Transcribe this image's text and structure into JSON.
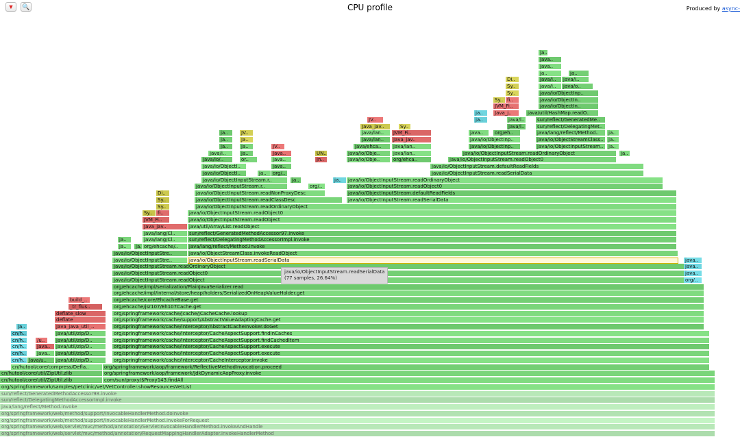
{
  "header": {
    "title": "CPU profile",
    "produced_prefix": "Produced by ",
    "produced_link": "async-",
    "reverse_glyph": "▼",
    "search_glyph": "🔍"
  },
  "tooltip": {
    "name": "java/io/ObjectInputStream.readSerialData",
    "detail": "(77 samples, 26.64%)"
  },
  "colors": {
    "green": "#7ad57a",
    "red": "#e06c6c",
    "aqua": "#6fd6e0",
    "yellow": "#d3cf55",
    "light_green": "#b8e8b8",
    "highlight": "#fff8d8"
  },
  "frames": [
    {
      "name": "org/springframework/web/servlet/mvc/method/annotation/RequestMappingHandlerAdapter.invokeHandlerMethod",
      "c": "lg",
      "r": 0,
      "x0": 0,
      "x1": 1044
    },
    {
      "name": "org/springframework/web/servlet/mvc/method/annotation/ServletInvocableHandlerMethod.invokeAndHandle",
      "c": "lg",
      "r": 1,
      "x0": 0,
      "x1": 1044
    },
    {
      "name": "org/springframework/web/method/support/InvocableHandlerMethod.invokeForRequest",
      "c": "lg",
      "r": 2,
      "x0": 0,
      "x1": 1044
    },
    {
      "name": "org/springframework/web/method/support/InvocableHandlerMethod.doInvoke",
      "c": "lg",
      "r": 3,
      "x0": 0,
      "x1": 1044
    },
    {
      "name": "java/lang/reflect/Method.invoke",
      "c": "lg",
      "r": 4,
      "x0": 0,
      "x1": 1044
    },
    {
      "name": "sun/reflect/DelegatingMethodAccessorImpl.invoke",
      "c": "lg",
      "r": 5,
      "x0": 0,
      "x1": 1044
    },
    {
      "name": "sun/reflect/GeneratedMethodAccessor98.invoke",
      "c": "lg",
      "r": 6,
      "x0": 0,
      "x1": 1044
    },
    {
      "name": "org/springframework/samples/petclinic/vet/VetController.showResourcesVetList",
      "c": "g",
      "r": 7,
      "x0": 0,
      "x1": 1044
    },
    {
      "name": "cn/hutool/core/util/ZipUtil.zlib",
      "c": "g",
      "r": 8,
      "x0": 0,
      "x1": 150
    },
    {
      "name": "com/sun/proxy/$Proxy143.findAll",
      "c": "g",
      "r": 8,
      "x0": 150,
      "x1": 1044
    },
    {
      "name": "cn/hutool/core/util/ZipUtil.zlib",
      "c": "g",
      "r": 9,
      "x0": 0,
      "x1": 150
    },
    {
      "name": "org/springframework/aop/framework/JdkDynamicAopProxy.invoke",
      "c": "g",
      "r": 9,
      "x0": 150,
      "x1": 1044
    },
    {
      "name": "cn/hutool/core/compress/Defla..",
      "c": "g",
      "r": 10,
      "x0": 16,
      "x1": 150
    },
    {
      "name": "org/springframework/aop/framework/ReflectiveMethodInvocation.proceed",
      "c": "g",
      "r": 10,
      "x0": 150,
      "x1": 1036
    },
    {
      "name": "cn/h..",
      "c": "a",
      "r": 11,
      "x0": 16,
      "x1": 40
    },
    {
      "name": "Java/u..",
      "c": "g",
      "r": 11,
      "x0": 40,
      "x1": 80
    },
    {
      "name": "java/util/zip/D..",
      "c": "g",
      "r": 11,
      "x0": 80,
      "x1": 155
    },
    {
      "name": "org/springframework/cache/interceptor/CacheInterceptor.invoke",
      "c": "g",
      "r": 11,
      "x0": 164,
      "x1": 1036
    },
    {
      "name": "cn/h..",
      "c": "a",
      "r": 12,
      "x0": 16,
      "x1": 40
    },
    {
      "name": "Java..",
      "c": "g",
      "r": 12,
      "x0": 52,
      "x1": 80
    },
    {
      "name": "java/util/zip/D..",
      "c": "g",
      "r": 12,
      "x0": 80,
      "x1": 155
    },
    {
      "name": "org/springframework/cache/interceptor/CacheAspectSupport.execute",
      "c": "g",
      "r": 12,
      "x0": 164,
      "x1": 1036
    },
    {
      "name": "cn/h..",
      "c": "a",
      "r": 13,
      "x0": 16,
      "x1": 40
    },
    {
      "name": "Java..",
      "c": "r",
      "r": 13,
      "x0": 52,
      "x1": 80
    },
    {
      "name": "java/util/zip/D..",
      "c": "g",
      "r": 13,
      "x0": 80,
      "x1": 155
    },
    {
      "name": "org/springframework/cache/interceptor/CacheAspectSupport.execute",
      "c": "g",
      "r": 13,
      "x0": 164,
      "x1": 1036
    },
    {
      "name": "cn/h..",
      "c": "a",
      "r": 14,
      "x0": 16,
      "x1": 40
    },
    {
      "name": "/u..",
      "c": "r",
      "r": 14,
      "x0": 52,
      "x1": 70
    },
    {
      "name": "java/util/zip/D..",
      "c": "g",
      "r": 14,
      "x0": 80,
      "x1": 155
    },
    {
      "name": "org/springframework/cache/interceptor/CacheAspectSupport.findCachedItem",
      "c": "g",
      "r": 14,
      "x0": 164,
      "x1": 1036
    },
    {
      "name": "cn/h..",
      "c": "a",
      "r": 15,
      "x0": 16,
      "x1": 40
    },
    {
      "name": "java/util/zip/D..",
      "c": "g",
      "r": 15,
      "x0": 80,
      "x1": 155
    },
    {
      "name": "org/springframework/cache/interceptor/CacheAspectSupport.findInCaches",
      "c": "g",
      "r": 15,
      "x0": 164,
      "x1": 1036
    },
    {
      "name": "ja..",
      "c": "a",
      "r": 16,
      "x0": 24,
      "x1": 40
    },
    {
      "name": "Java_java_util_..",
      "c": "r",
      "r": 16,
      "x0": 80,
      "x1": 155
    },
    {
      "name": "org/springframework/cache/interceptor/AbstractCacheInvoker.doGet",
      "c": "g",
      "r": 16,
      "x0": 164,
      "x1": 1028
    },
    {
      "name": "deflate",
      "c": "r",
      "r": 17,
      "x0": 80,
      "x1": 155
    },
    {
      "name": "org/springframework/cache/support/AbstractValueAdaptingCache.get",
      "c": "g",
      "r": 17,
      "x0": 164,
      "x1": 1028
    },
    {
      "name": "deflate_slow",
      "c": "r",
      "r": 18,
      "x0": 80,
      "x1": 155
    },
    {
      "name": "org/springframework/cache/jcache/JCacheCache.lookup",
      "c": "g",
      "r": 18,
      "x0": 164,
      "x1": 1028
    },
    {
      "name": "_tr_flus..",
      "c": "r",
      "r": 19,
      "x0": 100,
      "x1": 150
    },
    {
      "name": "org/ehcache/jsr107/Eh107Cache.get",
      "c": "g",
      "r": 19,
      "x0": 164,
      "x1": 1028
    },
    {
      "name": "build_..",
      "c": "r",
      "r": 20,
      "x0": 100,
      "x1": 132
    },
    {
      "name": "org/ehcache/core/EhcacheBase.get",
      "c": "g",
      "r": 20,
      "x0": 164,
      "x1": 1028
    },
    {
      "name": "org/ehcache/impl/internal/store/heap/holders/SerializedOnHeapValueHolder.get",
      "c": "g",
      "r": 21,
      "x0": 164,
      "x1": 1028
    },
    {
      "name": "org/ehcache/impl/serialization/PlainJavaSerializer.read",
      "c": "g",
      "r": 22,
      "x0": 164,
      "x1": 1028
    },
    {
      "name": "java/io/ObjectInputStream.readObject",
      "c": "g",
      "r": 23,
      "x0": 164,
      "x1": 1000
    },
    {
      "name": "org/..",
      "c": "a",
      "r": 23,
      "x0": 998,
      "x1": 1025
    },
    {
      "name": "java/io/ObjectInputStream.readObject0",
      "c": "g",
      "r": 24,
      "x0": 164,
      "x1": 1000
    },
    {
      "name": "java..",
      "c": "a",
      "r": 24,
      "x0": 998,
      "x1": 1025
    },
    {
      "name": "java/io/ObjectInputStream.readOrdinaryObject",
      "c": "g",
      "r": 25,
      "x0": 164,
      "x1": 1000
    },
    {
      "name": "java..",
      "c": "a",
      "r": 25,
      "x0": 998,
      "x1": 1025
    },
    {
      "name": "java/io/ObjectInputStre..",
      "c": "g",
      "r": 26,
      "x0": 164,
      "x1": 274
    },
    {
      "name": "java/io/ObjectInputStream.readSerialData",
      "c": "hl",
      "r": 26,
      "x0": 274,
      "x1": 990
    },
    {
      "name": "java..",
      "c": "a",
      "r": 26,
      "x0": 998,
      "x1": 1025
    },
    {
      "name": "java/io/ObjectInputStre..",
      "c": "g",
      "r": 27,
      "x0": 164,
      "x1": 274
    },
    {
      "name": "java/io/ObjectStreamClass.invokeReadObject",
      "c": "g",
      "r": 27,
      "x0": 274,
      "x1": 990
    },
    {
      "name": "ja..",
      "c": "g",
      "r": 28,
      "x0": 172,
      "x1": 192
    },
    {
      "name": "ja..",
      "c": "g",
      "r": 28,
      "x0": 196,
      "x1": 208
    },
    {
      "name": "org/ehcache/..",
      "c": "g",
      "r": 28,
      "x0": 208,
      "x1": 274
    },
    {
      "name": "java/lang/reflect/Method.invoke",
      "c": "g",
      "r": 28,
      "x0": 274,
      "x1": 988
    },
    {
      "name": "ja..",
      "c": "g",
      "r": 29,
      "x0": 172,
      "x1": 192
    },
    {
      "name": "java/lang/Cl..",
      "c": "g",
      "r": 29,
      "x0": 208,
      "x1": 274
    },
    {
      "name": "sun/reflect/DelegatingMethodAccessorImpl.invoke",
      "c": "g",
      "r": 29,
      "x0": 274,
      "x1": 988
    },
    {
      "name": "java/lang/Cl..",
      "c": "g",
      "r": 30,
      "x0": 208,
      "x1": 274
    },
    {
      "name": "sun/reflect/GeneratedMethodAccessor97.invoke",
      "c": "g",
      "r": 30,
      "x0": 274,
      "x1": 988
    },
    {
      "name": "Java_jav..",
      "c": "r",
      "r": 31,
      "x0": 208,
      "x1": 274
    },
    {
      "name": "java/util/ArrayList.readObject",
      "c": "g",
      "r": 31,
      "x0": 274,
      "x1": 988
    },
    {
      "name": "JVM_Fi..",
      "c": "r",
      "r": 32,
      "x0": 208,
      "x1": 248
    },
    {
      "name": "java/io/ObjectInputStream.readObject",
      "c": "g",
      "r": 32,
      "x0": 274,
      "x1": 988
    },
    {
      "name": "Sy..",
      "c": "y",
      "r": 33,
      "x0": 208,
      "x1": 228
    },
    {
      "name": "fi..",
      "c": "r",
      "r": 33,
      "x0": 228,
      "x1": 248
    },
    {
      "name": "java/io/ObjectInputStream.readObject0",
      "c": "g",
      "r": 33,
      "x0": 274,
      "x1": 988
    },
    {
      "name": "Sy..",
      "c": "y",
      "r": 34,
      "x0": 228,
      "x1": 248
    },
    {
      "name": "java/io/ObjectInputStream.readOrdinaryObject",
      "c": "g",
      "r": 34,
      "x0": 284,
      "x1": 988
    },
    {
      "name": "Sy..",
      "c": "y",
      "r": 35,
      "x0": 228,
      "x1": 248
    },
    {
      "name": "java/io/ObjectInputStream.readClassDesc",
      "c": "g",
      "r": 35,
      "x0": 284,
      "x1": 500
    },
    {
      "name": "java/io/ObjectInputStream.readSerialData",
      "c": "g",
      "r": 35,
      "x0": 506,
      "x1": 988
    },
    {
      "name": "Di..",
      "c": "y",
      "r": 36,
      "x0": 228,
      "x1": 248
    },
    {
      "name": "java/io/ObjectInputStream.readNonProxyDesc",
      "c": "g",
      "r": 36,
      "x0": 284,
      "x1": 475
    },
    {
      "name": "java/io/ObjectInputStream.defaultReadFields",
      "c": "g",
      "r": 36,
      "x0": 506,
      "x1": 988
    },
    {
      "name": "java/io/ObjectInputStream.r..",
      "c": "g",
      "r": 37,
      "x0": 284,
      "x1": 420
    },
    {
      "name": "org/..",
      "c": "g",
      "r": 37,
      "x0": 450,
      "x1": 475
    },
    {
      "name": "java/io/ObjectInputStream.readObject0",
      "c": "g",
      "r": 37,
      "x0": 506,
      "x1": 968
    },
    {
      "name": "java/io/ObjectInputStream.r..",
      "c": "g",
      "r": 38,
      "x0": 294,
      "x1": 420
    },
    {
      "name": "ja..",
      "c": "g",
      "r": 38,
      "x0": 424,
      "x1": 440
    },
    {
      "name": "ja..",
      "c": "a",
      "r": 38,
      "x0": 486,
      "x1": 506
    },
    {
      "name": "java/io/ObjectInputStream.readOrdinaryObject",
      "c": "g",
      "r": 38,
      "x0": 506,
      "x1": 968
    },
    {
      "name": "java/io/ObjectI..",
      "c": "g",
      "r": 39,
      "x0": 294,
      "x1": 360
    },
    {
      "name": "ja..",
      "c": "g",
      "r": 39,
      "x0": 376,
      "x1": 396
    },
    {
      "name": "org/..",
      "c": "g",
      "r": 39,
      "x0": 396,
      "x1": 420
    },
    {
      "name": "java/io/ObjectInputStream.readSerialData",
      "c": "g",
      "r": 39,
      "x0": 628,
      "x1": 940
    },
    {
      "name": "java/io/ObjectI..",
      "c": "g",
      "r": 40,
      "x0": 294,
      "x1": 360
    },
    {
      "name": "java..",
      "c": "g",
      "r": 40,
      "x0": 396,
      "x1": 426
    },
    {
      "name": "java/io/ObjectInputStream.defaultReadFields",
      "c": "g",
      "r": 40,
      "x0": 628,
      "x1": 940
    },
    {
      "name": "java/io/..",
      "c": "g",
      "r": 41,
      "x0": 294,
      "x1": 340
    },
    {
      "name": "or..",
      "c": "g",
      "r": 41,
      "x0": 350,
      "x1": 376
    },
    {
      "name": "java..",
      "c": "g",
      "r": 41,
      "x0": 396,
      "x1": 426
    },
    {
      "name": "jn..",
      "c": "r",
      "r": 41,
      "x0": 460,
      "x1": 478
    },
    {
      "name": "java/io/Obje..",
      "c": "g",
      "r": 41,
      "x0": 506,
      "x1": 570
    },
    {
      "name": "org/ehca..",
      "c": "g",
      "r": 41,
      "x0": 572,
      "x1": 630
    },
    {
      "name": "java/io/ObjectInputStream.readObject0",
      "c": "g",
      "r": 41,
      "x0": 654,
      "x1": 900
    },
    {
      "name": "java/i..",
      "c": "g",
      "r": 42,
      "x0": 304,
      "x1": 340
    },
    {
      "name": "ja..",
      "c": "g",
      "r": 42,
      "x0": 350,
      "x1": 370
    },
    {
      "name": "Java..",
      "c": "r",
      "r": 42,
      "x0": 396,
      "x1": 426
    },
    {
      "name": "UN..",
      "c": "y",
      "r": 42,
      "x0": 460,
      "x1": 478
    },
    {
      "name": "java/io/Obje..",
      "c": "g",
      "r": 42,
      "x0": 506,
      "x1": 570
    },
    {
      "name": "java/lan..",
      "c": "g",
      "r": 42,
      "x0": 572,
      "x1": 630
    },
    {
      "name": "java/io/ObjectInputStream.readOrdinaryObject",
      "c": "g",
      "r": 42,
      "x0": 674,
      "x1": 900
    },
    {
      "name": "ja..",
      "c": "g",
      "r": 42,
      "x0": 904,
      "x1": 920
    },
    {
      "name": "ja..",
      "c": "g",
      "r": 43,
      "x0": 320,
      "x1": 340
    },
    {
      "name": "ja..",
      "c": "g",
      "r": 43,
      "x0": 350,
      "x1": 370
    },
    {
      "name": "JV..",
      "c": "r",
      "r": 43,
      "x0": 396,
      "x1": 416
    },
    {
      "name": "java/ehca..",
      "c": "g",
      "r": 43,
      "x0": 516,
      "x1": 570
    },
    {
      "name": "java/lan..",
      "c": "g",
      "r": 43,
      "x0": 572,
      "x1": 630
    },
    {
      "name": "java/io/ObjectInp..",
      "c": "g",
      "r": 43,
      "x0": 684,
      "x1": 760
    },
    {
      "name": "java/io/ObjectInputStream..",
      "c": "g",
      "r": 43,
      "x0": 782,
      "x1": 884
    },
    {
      "name": "ja..",
      "c": "g",
      "r": 43,
      "x0": 886,
      "x1": 904
    },
    {
      "name": "ja..",
      "c": "g",
      "r": 44,
      "x0": 320,
      "x1": 340
    },
    {
      "name": "Ja..",
      "c": "y",
      "r": 44,
      "x0": 350,
      "x1": 370
    },
    {
      "name": "java/lan..",
      "c": "g",
      "r": 44,
      "x0": 526,
      "x1": 570
    },
    {
      "name": "Java_jav..",
      "c": "r",
      "r": 44,
      "x0": 572,
      "x1": 630
    },
    {
      "name": "java/io/ObjectInp..",
      "c": "g",
      "r": 44,
      "x0": 684,
      "x1": 760
    },
    {
      "name": "java/io/ObjectStreamClass..",
      "c": "g",
      "r": 44,
      "x0": 782,
      "x1": 884
    },
    {
      "name": "ja..",
      "c": "g",
      "r": 44,
      "x0": 886,
      "x1": 904
    },
    {
      "name": "ja..",
      "c": "g",
      "r": 45,
      "x0": 320,
      "x1": 340
    },
    {
      "name": "JV..",
      "c": "y",
      "r": 45,
      "x0": 350,
      "x1": 370
    },
    {
      "name": "java/lan..",
      "c": "g",
      "r": 45,
      "x0": 526,
      "x1": 570
    },
    {
      "name": "JVM_Fi..",
      "c": "r",
      "r": 45,
      "x0": 572,
      "x1": 630
    },
    {
      "name": "java..",
      "c": "g",
      "r": 45,
      "x0": 684,
      "x1": 714
    },
    {
      "name": "org/eh..",
      "c": "g",
      "r": 45,
      "x0": 720,
      "x1": 760
    },
    {
      "name": "java/lang/reflect/Method..",
      "c": "g",
      "r": 45,
      "x0": 782,
      "x1": 884
    },
    {
      "name": "ja..",
      "c": "g",
      "r": 45,
      "x0": 886,
      "x1": 904
    },
    {
      "name": "Java_jav..",
      "c": "y",
      "r": 46,
      "x0": 526,
      "x1": 570
    },
    {
      "name": "Sy..",
      "c": "y",
      "r": 46,
      "x0": 582,
      "x1": 600
    },
    {
      "name": "java/l..",
      "c": "g",
      "r": 46,
      "x0": 740,
      "x1": 768
    },
    {
      "name": "sun/reflect/DelegatingMet..",
      "c": "g",
      "r": 46,
      "x0": 782,
      "x1": 884
    },
    {
      "name": "JV..",
      "c": "r",
      "r": 47,
      "x0": 536,
      "x1": 560
    },
    {
      "name": "ja..",
      "c": "a",
      "r": 47,
      "x0": 692,
      "x1": 712
    },
    {
      "name": "java/l..",
      "c": "g",
      "r": 47,
      "x0": 740,
      "x1": 768
    },
    {
      "name": "sun/reflect/GeneratedMe..",
      "c": "g",
      "r": 47,
      "x0": 782,
      "x1": 884
    },
    {
      "name": "ja..",
      "c": "a",
      "r": 48,
      "x0": 692,
      "x1": 712
    },
    {
      "name": "Java_j..",
      "c": "r",
      "r": 48,
      "x0": 720,
      "x1": 758
    },
    {
      "name": "java/util/HashMap.readO..",
      "c": "g",
      "r": 48,
      "x0": 768,
      "x1": 874
    },
    {
      "name": "JVM_Fi..",
      "c": "r",
      "r": 49,
      "x0": 720,
      "x1": 758
    },
    {
      "name": "java/io/ObjectIn..",
      "c": "g",
      "r": 49,
      "x0": 786,
      "x1": 874
    },
    {
      "name": "Sy..",
      "c": "y",
      "r": 50,
      "x0": 720,
      "x1": 738
    },
    {
      "name": "fi..",
      "c": "r",
      "r": 50,
      "x0": 738,
      "x1": 758
    },
    {
      "name": "java/io/ObjectIn..",
      "c": "g",
      "r": 50,
      "x0": 786,
      "x1": 874
    },
    {
      "name": "Sy..",
      "c": "y",
      "r": 51,
      "x0": 738,
      "x1": 758
    },
    {
      "name": "java/io/ObjectInp..",
      "c": "g",
      "r": 51,
      "x0": 786,
      "x1": 874
    },
    {
      "name": "Sy..",
      "c": "y",
      "r": 52,
      "x0": 738,
      "x1": 758
    },
    {
      "name": "java/i..",
      "c": "g",
      "r": 52,
      "x0": 786,
      "x1": 820
    },
    {
      "name": "java/o..",
      "c": "g",
      "r": 52,
      "x0": 820,
      "x1": 866
    },
    {
      "name": "Di..",
      "c": "y",
      "r": 53,
      "x0": 738,
      "x1": 758
    },
    {
      "name": "java/i..",
      "c": "g",
      "r": 53,
      "x0": 786,
      "x1": 820
    },
    {
      "name": "java/i..",
      "c": "g",
      "r": 53,
      "x0": 820,
      "x1": 860
    },
    {
      "name": "ja..",
      "c": "g",
      "r": 54,
      "x0": 786,
      "x1": 820
    },
    {
      "name": "ja..",
      "c": "g",
      "r": 54,
      "x0": 830,
      "x1": 860
    },
    {
      "name": "java..",
      "c": "g",
      "r": 55,
      "x0": 786,
      "x1": 820
    },
    {
      "name": "java..",
      "c": "g",
      "r": 56,
      "x0": 786,
      "x1": 820
    },
    {
      "name": "ja..",
      "c": "g",
      "r": 57,
      "x0": 786,
      "x1": 800
    }
  ]
}
